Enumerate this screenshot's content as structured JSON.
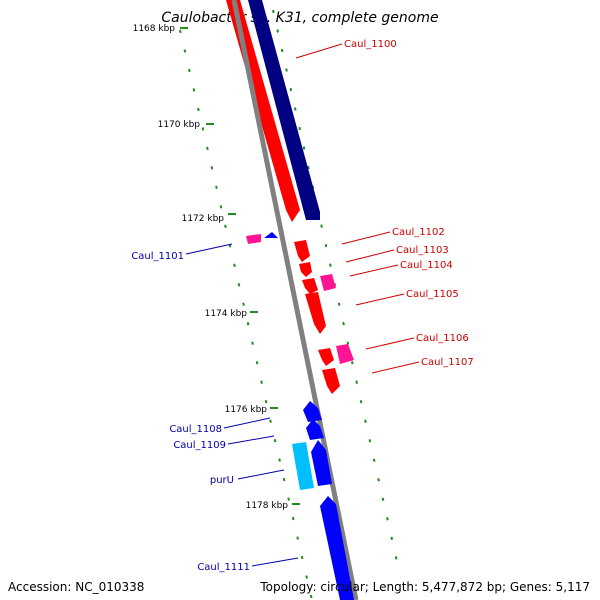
{
  "title": "Caulobacter sp. K31, complete genome",
  "footer": {
    "accession": "Accession: NC_010338",
    "stats": "Topology: circular; Length: 5,477,872 bp; Genes: 5,117"
  },
  "colors": {
    "forward_cds": "#ff0000",
    "forward_other": "#ff1493",
    "reverse_cds": "#0000ff",
    "reverse_other": "#00bfff",
    "forward_label": "#cc0000",
    "reverse_label": "#0000aa",
    "ruler": "#808080",
    "gc_dots": "#228b22",
    "dark_blue_track": "#000080"
  },
  "ticks": [
    {
      "label": "1168 kbp"
    },
    {
      "label": "1170 kbp"
    },
    {
      "label": "1172 kbp"
    },
    {
      "label": "1174 kbp"
    },
    {
      "label": "1176 kbp"
    },
    {
      "label": "1178 kbp"
    }
  ],
  "genes_forward": [
    {
      "label": "Caul_1100"
    },
    {
      "label": "Caul_1102"
    },
    {
      "label": "Caul_1103"
    },
    {
      "label": "Caul_1104"
    },
    {
      "label": "Caul_1105"
    },
    {
      "label": "Caul_1106"
    },
    {
      "label": "Caul_1107"
    }
  ],
  "genes_reverse": [
    {
      "label": "Caul_1101"
    },
    {
      "label": "Caul_1108"
    },
    {
      "label": "Caul_1109"
    },
    {
      "label": "purU"
    },
    {
      "label": "Caul_1111"
    }
  ]
}
